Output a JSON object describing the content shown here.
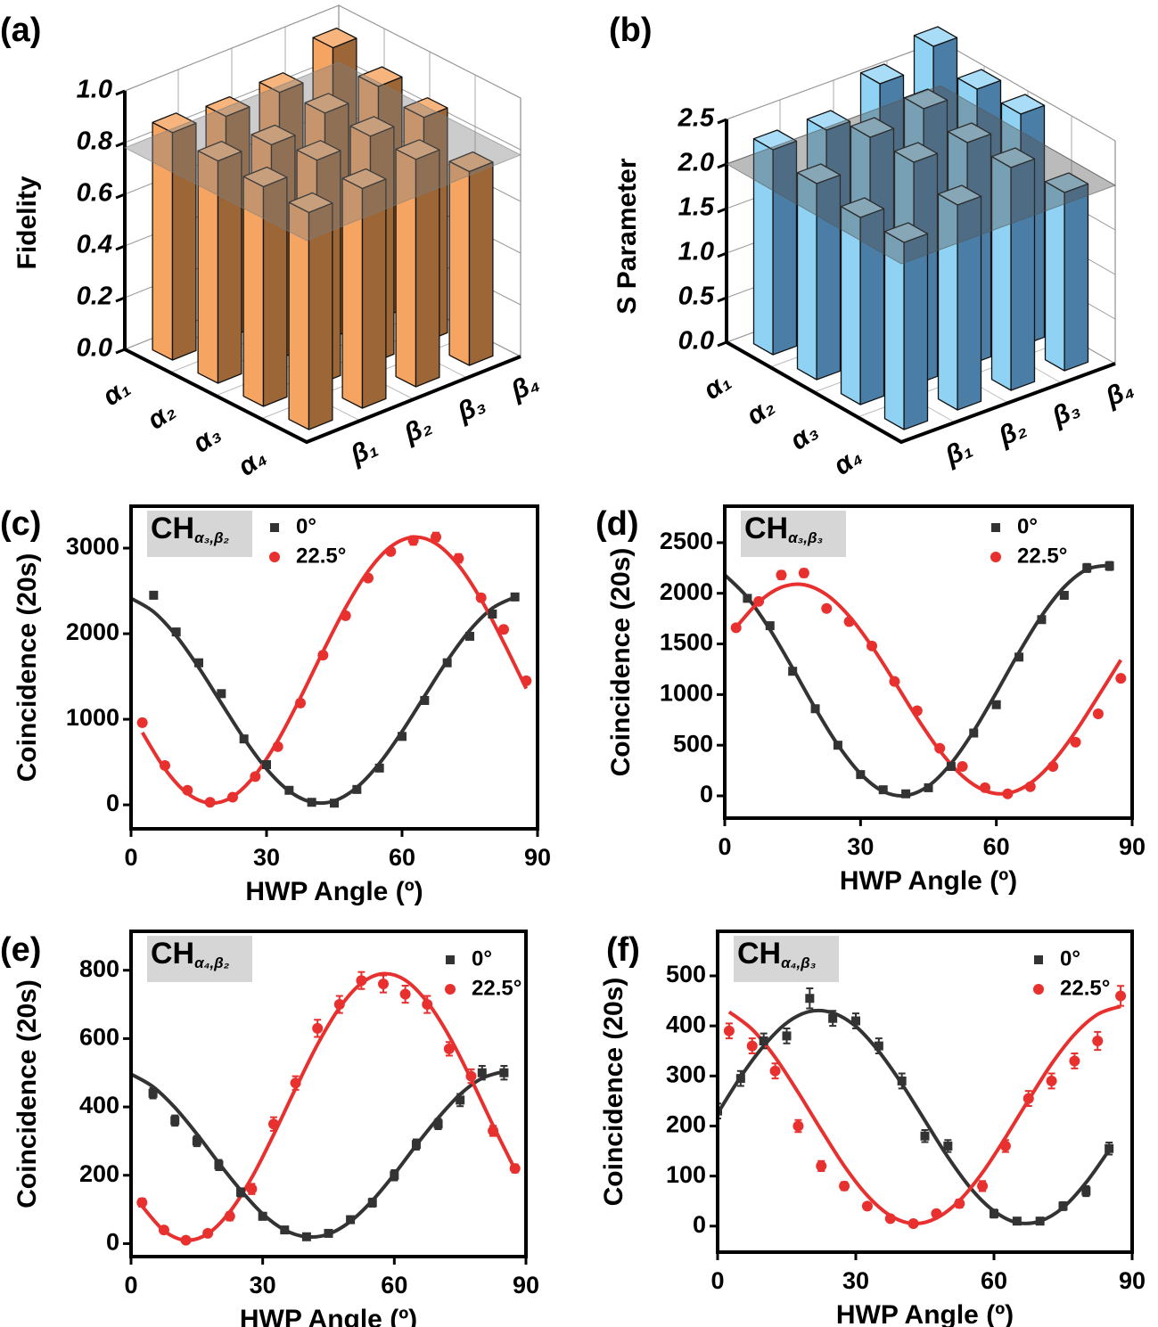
{
  "chart_data": [
    {
      "type": "bar3d",
      "label": "(a)",
      "zlabel": "Fidelity",
      "rows": [
        "α₁",
        "α₂",
        "α₃",
        "α₄"
      ],
      "columns": [
        "β₁",
        "β₂",
        "β₃",
        "β₄"
      ],
      "values": [
        [
          0.88,
          0.86,
          0.87,
          0.96
        ],
        [
          0.86,
          0.84,
          0.88,
          0.9
        ],
        [
          0.85,
          0.87,
          0.88,
          0.87
        ],
        [
          0.84,
          0.85,
          0.88,
          0.75
        ]
      ],
      "colors": {
        "top": "#f7b47c",
        "left": "#f5a462",
        "right": "#9c6637"
      },
      "plane": 0.78,
      "plane_color": "#7f7f7f",
      "zlim": [
        0,
        1
      ],
      "zticks": [
        {
          "value": 0,
          "label": "0.0"
        },
        {
          "value": 0.2,
          "label": "0.2"
        },
        {
          "value": 0.4,
          "label": "0.4"
        },
        {
          "value": 0.6,
          "label": "0.6"
        },
        {
          "value": 0.8,
          "label": "0.8"
        },
        {
          "value": 1,
          "label": "1.0"
        }
      ]
    },
    {
      "type": "bar3d",
      "label": "(b)",
      "zlabel": "S Parameter",
      "rows": [
        "α₁",
        "α₂",
        "α₃",
        "α₄"
      ],
      "columns": [
        "β₁",
        "β₂",
        "β₃",
        "β₄"
      ],
      "values": [
        [
          2.3,
          2.3,
          2.6,
          2.8
        ],
        [
          2.2,
          2.5,
          2.6,
          2.6
        ],
        [
          2.1,
          2.5,
          2.5,
          2.6
        ],
        [
          2.1,
          2.3,
          2.5,
          2.0
        ]
      ],
      "colors": {
        "top": "#a9ddf7",
        "left": "#8fd2f3",
        "right": "#4a7ea6"
      },
      "plane": 2.0,
      "plane_color": "#555555",
      "zlim": [
        0,
        2.5
      ],
      "zticks": [
        {
          "value": 0,
          "label": "0.0"
        },
        {
          "value": 0.5,
          "label": "0.5"
        },
        {
          "value": 1,
          "label": "1.0"
        },
        {
          "value": 1.5,
          "label": "1.5"
        },
        {
          "value": 2,
          "label": "2.0"
        },
        {
          "value": 2.5,
          "label": "2.5"
        }
      ]
    },
    {
      "type": "scatter",
      "label": "(c)",
      "annotation": {
        "main": "CH",
        "sub": "α₃,β₂"
      },
      "xlabel": "HWP Angle (º)",
      "ylabel": "Coincidence (20s)",
      "xlim": [
        0,
        90
      ],
      "xticks": [
        0,
        30,
        60,
        90
      ],
      "ylim": [
        -280,
        3490
      ],
      "yticks": [
        0,
        1000,
        2000,
        3000
      ],
      "series": [
        {
          "name": "0°",
          "color": "#333333",
          "marker": "square",
          "x": [
            5,
            10,
            15,
            20,
            25,
            30,
            35,
            40,
            45,
            50,
            55,
            60,
            65,
            70,
            75,
            80,
            85
          ],
          "values": [
            2450,
            2020,
            1660,
            1300,
            770,
            470,
            170,
            30,
            20,
            180,
            430,
            800,
            1220,
            1660,
            1970,
            2230,
            2430
          ],
          "errors": [
            40,
            40,
            40,
            40,
            40,
            40,
            30,
            30,
            30,
            30,
            30,
            40,
            40,
            40,
            40,
            40,
            40
          ],
          "fit": {
            "x": [
              0,
              5,
              10,
              15,
              20,
              25,
              30,
              35,
              40,
              45,
              50,
              55,
              60,
              65,
              70,
              75,
              80,
              85
            ],
            "values": [
              2413,
              2256,
              1975,
              1604,
              1188,
              776,
              420,
              162,
              32,
              47,
              204,
              485,
              856,
              1272,
              1684,
              2039,
              2298,
              2428
            ]
          }
        },
        {
          "name": "22.5°",
          "color": "#e8312f",
          "marker": "circle",
          "x": [
            2.5,
            7.5,
            12.5,
            17.5,
            22.5,
            27.5,
            32.5,
            37.5,
            42.5,
            47.5,
            52.5,
            57.5,
            62.5,
            67.5,
            72.5,
            77.5,
            82.5,
            87.5
          ],
          "values": [
            960,
            460,
            170,
            30,
            90,
            330,
            680,
            1190,
            1750,
            2210,
            2650,
            2960,
            3090,
            3130,
            2880,
            2420,
            2050,
            1450
          ],
          "errors": [
            40,
            30,
            30,
            30,
            30,
            30,
            40,
            40,
            40,
            40,
            40,
            40,
            50,
            50,
            50,
            40,
            40,
            40
          ],
          "fit": {
            "x": [
              2.5,
              7.5,
              12.5,
              17.5,
              22.5,
              27.5,
              32.5,
              37.5,
              42.5,
              47.5,
              52.5,
              57.5,
              62.5,
              67.5,
              72.5,
              77.5,
              82.5,
              87.5
            ],
            "values": [
              846,
              420,
              133,
              21,
              96,
              350,
              751,
              1252,
              1791,
              2304,
              2730,
              3017,
              3129,
              3054,
              2800,
              2399,
              1898,
              1359
            ]
          }
        }
      ]
    },
    {
      "type": "scatter",
      "label": "(d)",
      "annotation": {
        "main": "CH",
        "sub": "α₃,β₃"
      },
      "xlabel": "HWP Angle (º)",
      "ylabel": "Coincidence (20s)",
      "xlim": [
        0,
        90
      ],
      "xticks": [
        0,
        30,
        60,
        90
      ],
      "ylim": [
        -220,
        2860
      ],
      "yticks": [
        0,
        500,
        1000,
        1500,
        2000,
        2500
      ],
      "series": [
        {
          "name": "0°",
          "color": "#333333",
          "marker": "square",
          "x": [
            5,
            10,
            15,
            20,
            25,
            30,
            35,
            40,
            45,
            50,
            55,
            60,
            65,
            70,
            75,
            80,
            85
          ],
          "values": [
            1950,
            1680,
            1230,
            860,
            500,
            210,
            60,
            20,
            80,
            290,
            620,
            900,
            1370,
            1740,
            1980,
            2250,
            2270
          ],
          "errors": [
            30,
            30,
            30,
            30,
            30,
            25,
            20,
            20,
            20,
            25,
            30,
            30,
            30,
            30,
            30,
            40,
            40
          ],
          "fit": {
            "x": [
              0,
              5,
              10,
              15,
              20,
              25,
              30,
              35,
              40,
              45,
              50,
              55,
              60,
              65,
              70,
              75,
              80,
              85
            ],
            "values": [
              2182,
              1960,
              1640,
              1260,
              864,
              503,
              218,
              44,
              3,
              98,
              320,
              640,
              1020,
              1416,
              1777,
              2062,
              2236,
              2277
            ]
          }
        },
        {
          "name": "22.5°",
          "color": "#e8312f",
          "marker": "circle",
          "x": [
            2.5,
            7.5,
            12.5,
            17.5,
            22.5,
            27.5,
            32.5,
            37.5,
            42.5,
            47.5,
            52.5,
            57.5,
            62.5,
            67.5,
            72.5,
            77.5,
            82.5,
            87.5
          ],
          "values": [
            1660,
            1920,
            2180,
            2200,
            1850,
            1720,
            1480,
            1130,
            840,
            470,
            290,
            80,
            20,
            90,
            290,
            530,
            810,
            1160
          ],
          "errors": [
            30,
            30,
            40,
            40,
            30,
            30,
            30,
            30,
            30,
            25,
            25,
            20,
            20,
            20,
            25,
            25,
            30,
            30
          ],
          "fit": {
            "x": [
              2.5,
              7.5,
              12.5,
              17.5,
              22.5,
              27.5,
              32.5,
              37.5,
              42.5,
              47.5,
              52.5,
              57.5,
              62.5,
              67.5,
              72.5,
              77.5,
              82.5,
              87.5
            ],
            "values": [
              1664,
              1913,
              2059,
              2085,
              1985,
              1774,
              1476,
              1127,
              769,
              446,
              197,
              51,
              25,
              125,
              336,
              634,
              983,
              1341
            ]
          }
        }
      ]
    },
    {
      "type": "scatter",
      "label": "(e)",
      "annotation": {
        "main": "CH",
        "sub": "α₄,β₂"
      },
      "xlabel": "HWP Angle (º)",
      "ylabel": "Coincidence (20s)",
      "xlim": [
        0,
        90
      ],
      "xticks": [
        0,
        30,
        60,
        90
      ],
      "ylim": [
        -38,
        914
      ],
      "yticks": [
        0,
        200,
        400,
        600,
        800
      ],
      "series": [
        {
          "name": "0°",
          "color": "#333333",
          "marker": "square",
          "x": [
            5,
            10,
            15,
            20,
            25,
            30,
            35,
            40,
            45,
            50,
            55,
            60,
            65,
            70,
            75,
            80,
            85
          ],
          "values": [
            440,
            360,
            300,
            230,
            150,
            80,
            40,
            20,
            30,
            70,
            120,
            200,
            290,
            350,
            420,
            500,
            500
          ],
          "errors": [
            15,
            15,
            15,
            15,
            12,
            10,
            8,
            8,
            8,
            10,
            12,
            15,
            15,
            15,
            18,
            20,
            20
          ],
          "fit": {
            "x": [
              0,
              5,
              10,
              15,
              20,
              25,
              30,
              35,
              40,
              45,
              50,
              55,
              60,
              65,
              70,
              75,
              80,
              85
            ],
            "values": [
              496,
              459,
              398,
              321,
              236,
              156,
              87,
              40,
              20,
              28,
              65,
              126,
              203,
              288,
              368,
              437,
              484,
              504
            ]
          }
        },
        {
          "name": "22.5°",
          "color": "#e8312f",
          "marker": "circle",
          "x": [
            2.5,
            7.5,
            12.5,
            17.5,
            22.5,
            27.5,
            32.5,
            37.5,
            42.5,
            47.5,
            52.5,
            57.5,
            62.5,
            67.5,
            72.5,
            77.5,
            82.5,
            87.5
          ],
          "values": [
            120,
            40,
            10,
            30,
            80,
            160,
            350,
            470,
            630,
            700,
            770,
            760,
            730,
            700,
            570,
            490,
            330,
            220
          ],
          "errors": [
            12,
            8,
            6,
            8,
            12,
            15,
            20,
            20,
            25,
            25,
            25,
            25,
            25,
            25,
            20,
            20,
            15,
            12
          ],
          "fit": {
            "x": [
              2.5,
              7.5,
              12.5,
              17.5,
              22.5,
              27.5,
              32.5,
              37.5,
              42.5,
              47.5,
              52.5,
              57.5,
              62.5,
              67.5,
              72.5,
              77.5,
              82.5,
              87.5
            ],
            "values": [
              110,
              38,
              10,
              29,
              93,
              193,
              319,
              454,
              583,
              690,
              762,
              790,
              771,
              707,
              607,
              481,
              346,
              217
            ]
          }
        }
      ]
    },
    {
      "type": "scatter",
      "label": "(f)",
      "annotation": {
        "main": "CH",
        "sub": "α₄,β₃"
      },
      "xlabel": "HWP Angle (º)",
      "ylabel": "Coincidence (20s)",
      "xlim": [
        0,
        90
      ],
      "xticks": [
        0,
        30,
        60,
        90
      ],
      "ylim": [
        -52,
        589
      ],
      "yticks": [
        0,
        100,
        200,
        300,
        400,
        500
      ],
      "series": [
        {
          "name": "0°",
          "color": "#333333",
          "marker": "square",
          "x": [
            0,
            5,
            10,
            15,
            20,
            25,
            30,
            35,
            40,
            45,
            50,
            60,
            65,
            70,
            75,
            80,
            85
          ],
          "values": [
            230,
            295,
            370,
            380,
            455,
            415,
            410,
            360,
            290,
            180,
            160,
            25,
            10,
            10,
            40,
            70,
            155
          ],
          "errors": [
            15,
            15,
            15,
            15,
            20,
            15,
            15,
            15,
            15,
            12,
            12,
            8,
            6,
            6,
            8,
            10,
            12
          ],
          "fit": {
            "x": [
              0,
              5,
              10,
              15,
              20,
              25,
              30,
              35,
              40,
              45,
              50,
              55,
              60,
              65,
              70,
              75,
              80,
              85
            ],
            "values": [
              225,
              298,
              360,
              406,
              429,
              426,
              399,
              349,
              284,
              211,
              138,
              75,
              30,
              7,
              10,
              37,
              87,
              152
            ]
          }
        },
        {
          "name": "22.5°",
          "color": "#e8312f",
          "marker": "circle",
          "x": [
            2.5,
            7.5,
            12.5,
            17.5,
            22.5,
            27.5,
            32.5,
            37.5,
            42.5,
            47.5,
            52.5,
            57.5,
            62.5,
            67.5,
            72.5,
            77.5,
            82.5,
            87.5
          ],
          "values": [
            390,
            360,
            310,
            200,
            120,
            80,
            40,
            15,
            5,
            25,
            45,
            80,
            160,
            255,
            290,
            330,
            370,
            460
          ],
          "errors": [
            15,
            15,
            15,
            12,
            10,
            8,
            6,
            5,
            4,
            6,
            8,
            10,
            12,
            15,
            15,
            15,
            18,
            20
          ],
          "fit": {
            "x": [
              2.5,
              7.5,
              12.5,
              17.5,
              22.5,
              27.5,
              32.5,
              37.5,
              42.5,
              47.5,
              52.5,
              57.5,
              62.5,
              67.5,
              72.5,
              77.5,
              82.5,
              87.5
            ],
            "values": [
              428,
              393,
              337,
              267,
              192,
              120,
              61,
              21,
              5,
              16,
              51,
              107,
              177,
              252,
              324,
              383,
              423,
              439
            ]
          }
        }
      ]
    }
  ]
}
